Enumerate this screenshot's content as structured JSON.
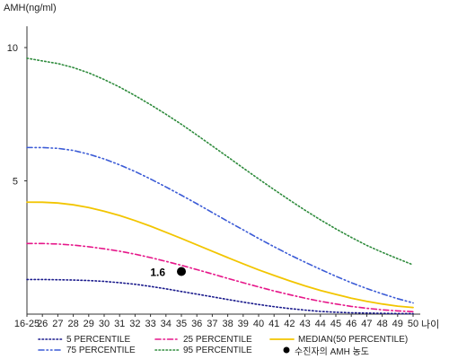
{
  "chart_data": {
    "type": "line",
    "title": "",
    "ylabel": "AMH(ng/ml)",
    "xlabel": "나이",
    "categories": [
      "16-25",
      "26",
      "27",
      "28",
      "29",
      "30",
      "31",
      "32",
      "33",
      "34",
      "35",
      "36",
      "37",
      "38",
      "39",
      "40",
      "41",
      "42",
      "43",
      "44",
      "45",
      "46",
      "47",
      "48",
      "49",
      "50"
    ],
    "ylim": [
      0,
      10.8
    ],
    "yticks": [
      5,
      10
    ],
    "ytick_labels": [
      "5",
      "10"
    ],
    "grid": false,
    "legend_position": "bottom",
    "series": [
      {
        "name": "5 PERCENTILE",
        "color": "#1a1a8c",
        "dash": "dotted",
        "values": [
          1.3,
          1.3,
          1.29,
          1.28,
          1.26,
          1.23,
          1.18,
          1.12,
          1.04,
          0.95,
          0.85,
          0.75,
          0.65,
          0.55,
          0.45,
          0.36,
          0.28,
          0.21,
          0.15,
          0.1,
          0.07,
          0.05,
          0.04,
          0.03,
          0.02,
          0.02
        ]
      },
      {
        "name": "25 PERCENTILE",
        "color": "#e6178a",
        "dash": "dashdot",
        "values": [
          2.65,
          2.65,
          2.63,
          2.59,
          2.53,
          2.45,
          2.36,
          2.25,
          2.12,
          1.98,
          1.83,
          1.67,
          1.51,
          1.34,
          1.18,
          1.02,
          0.87,
          0.73,
          0.6,
          0.48,
          0.38,
          0.29,
          0.22,
          0.16,
          0.12,
          0.09
        ]
      },
      {
        "name": "MEDIAN(50 PERCENTILE)",
        "color": "#f2c500",
        "dash": "solid",
        "values": [
          4.2,
          4.2,
          4.17,
          4.1,
          4.0,
          3.86,
          3.7,
          3.51,
          3.3,
          3.07,
          2.84,
          2.6,
          2.36,
          2.12,
          1.89,
          1.66,
          1.45,
          1.25,
          1.06,
          0.89,
          0.74,
          0.6,
          0.48,
          0.38,
          0.3,
          0.25
        ]
      },
      {
        "name": "75 PERCENTILE",
        "color": "#3b5bd6",
        "dash": "dashdotdot",
        "values": [
          6.25,
          6.25,
          6.22,
          6.14,
          6.0,
          5.82,
          5.6,
          5.35,
          5.07,
          4.77,
          4.46,
          4.14,
          3.81,
          3.48,
          3.16,
          2.84,
          2.53,
          2.23,
          1.95,
          1.68,
          1.42,
          1.18,
          0.96,
          0.76,
          0.58,
          0.42
        ]
      },
      {
        "name": "95 PERCENTILE",
        "color": "#2e8b3c",
        "dash": "dotted",
        "values": [
          9.6,
          9.5,
          9.4,
          9.25,
          9.05,
          8.8,
          8.52,
          8.2,
          7.86,
          7.5,
          7.12,
          6.72,
          6.31,
          5.9,
          5.48,
          5.07,
          4.67,
          4.28,
          3.9,
          3.54,
          3.2,
          2.88,
          2.58,
          2.32,
          2.08,
          1.85
        ]
      }
    ],
    "points": [
      {
        "name": "수진자의 AMH 농도",
        "x": "35",
        "y": 1.6,
        "label": "1.6",
        "color": "#000000"
      }
    ]
  }
}
